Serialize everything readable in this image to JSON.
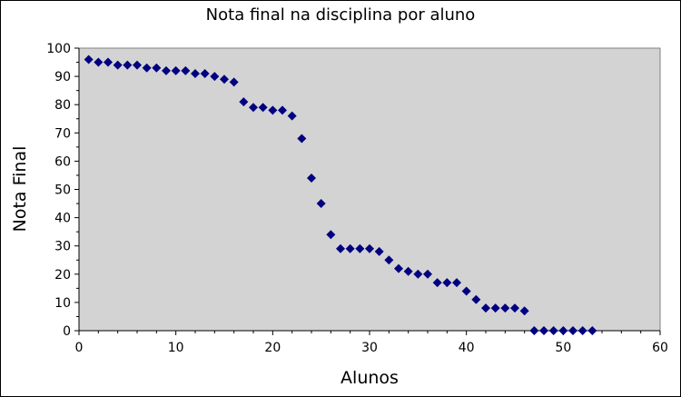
{
  "chart_data": {
    "type": "scatter",
    "title": "Nota final na disciplina por aluno",
    "xlabel": "Alunos",
    "ylabel": "Nota Final",
    "xlim": [
      0,
      60
    ],
    "ylim": [
      0,
      100
    ],
    "x_ticks": [
      "0",
      "10",
      "20",
      "30",
      "40",
      "50",
      "60"
    ],
    "y_ticks": [
      "0",
      "10",
      "20",
      "30",
      "40",
      "50",
      "60",
      "70",
      "80",
      "90",
      "100"
    ],
    "grid": false,
    "legend": "none",
    "plot_background": "#d3d3d3",
    "marker_color": "#000080",
    "marker": "diamond",
    "x": [
      1,
      2,
      3,
      4,
      5,
      6,
      7,
      8,
      9,
      10,
      11,
      12,
      13,
      14,
      15,
      16,
      17,
      18,
      19,
      20,
      21,
      22,
      23,
      24,
      25,
      26,
      27,
      28,
      29,
      30,
      31,
      32,
      33,
      34,
      35,
      36,
      37,
      38,
      39,
      40,
      41,
      42,
      43,
      44,
      45,
      46,
      47,
      48,
      49,
      50,
      51,
      52,
      53
    ],
    "y": [
      96,
      95,
      95,
      94,
      94,
      94,
      93,
      93,
      92,
      92,
      92,
      91,
      91,
      90,
      89,
      88,
      81,
      79,
      79,
      78,
      78,
      76,
      68,
      54,
      45,
      34,
      29,
      29,
      29,
      29,
      28,
      25,
      22,
      21,
      20,
      20,
      17,
      17,
      17,
      14,
      11,
      8,
      8,
      8,
      8,
      7,
      0,
      0,
      0,
      0,
      0,
      0,
      0
    ]
  }
}
